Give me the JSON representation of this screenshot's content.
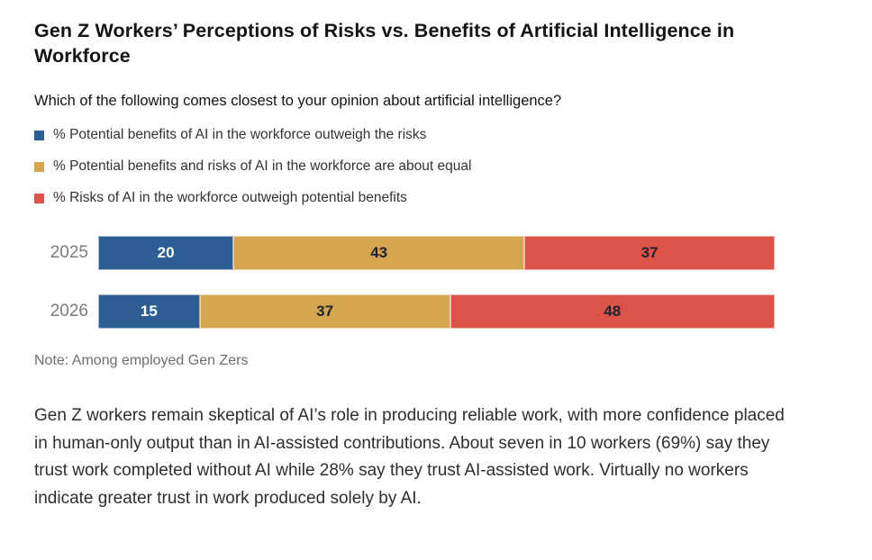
{
  "page": {
    "title": "Gen Z Workers’ Perceptions of Risks vs. Benefits of Artificial Intelligence in Workforce",
    "subtitle": "Which of the following comes closest to your opinion about artificial intelligence?",
    "note": "Note: Among employed Gen Zers",
    "body_paragraph": "Gen Z workers remain skeptical of AI’s role in producing reliable work, with more confidence placed in human-only output than in AI-assisted contributions. About seven in 10 workers (69%) say they trust work completed without AI while 28% say they trust AI-assisted work. Virtually no workers indicate greater trust in work produced solely by AI."
  },
  "colors": {
    "benefits_blue": "#2d5f94",
    "equal_gold": "#d5a54f",
    "risks_red": "#dc5349",
    "label_on_blue": "#ffffff",
    "label_on_light": "#1f2430",
    "year_label_gray": "#7b7b7b",
    "note_gray": "#6e6e6e"
  },
  "chart_data": {
    "type": "bar",
    "orientation": "horizontal",
    "stacked": true,
    "grid": false,
    "legend_position": "top-left",
    "xlim": [
      0,
      100
    ],
    "categories": [
      "2025",
      "2026"
    ],
    "series": [
      {
        "name": "% Potential benefits of AI in the workforce outweigh the risks",
        "color": "#2d5f94",
        "value_label_color": "#ffffff",
        "values": [
          20,
          15
        ]
      },
      {
        "name": "% Potential benefits and risks of AI in the workforce are about equal",
        "color": "#d5a54f",
        "value_label_color": "#1f2430",
        "values": [
          43,
          37
        ]
      },
      {
        "name": "% Risks of AI in the workforce outweigh potential benefits",
        "color": "#dc5349",
        "value_label_color": "#1f2430",
        "values": [
          37,
          48
        ]
      }
    ]
  }
}
